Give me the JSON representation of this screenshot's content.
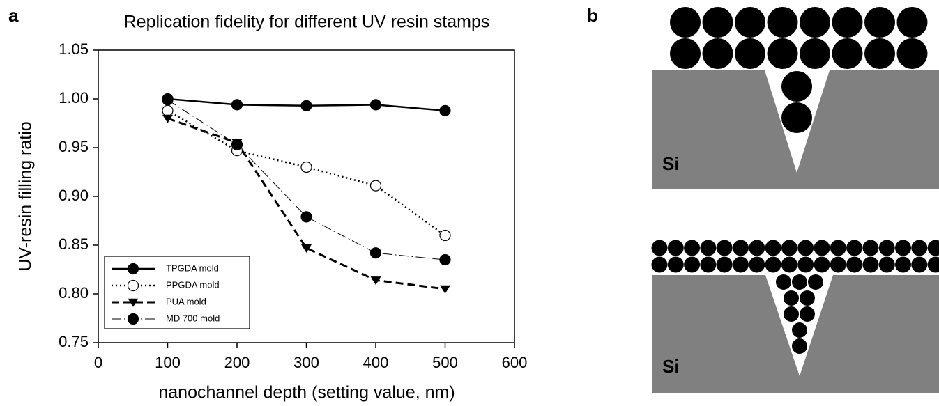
{
  "panel_labels": [
    "a",
    "b"
  ],
  "chart_data": {
    "type": "line",
    "title": "Replication fidelity for different UV resin stamps",
    "x_label": "nanochannel depth (setting value, nm)",
    "y_label": "UV-resin filling ratio",
    "x": [
      100,
      200,
      300,
      400,
      500
    ],
    "series": [
      {
        "name": "TPGDA mold",
        "color": "#000000",
        "marker": "circle",
        "line_style": "solid",
        "values": [
          1.0,
          0.994,
          0.993,
          0.994,
          0.988
        ]
      },
      {
        "name": "PPGDA mold",
        "color": "#000000",
        "marker": "open-circle",
        "line_style": "dotted",
        "values": [
          0.988,
          0.947,
          0.93,
          0.911,
          0.86
        ]
      },
      {
        "name": "PUA mold",
        "color": "#000000",
        "marker": "triangle-down",
        "line_style": "dashed",
        "values": [
          0.98,
          0.955,
          0.847,
          0.814,
          0.805
        ]
      },
      {
        "name": "MD 700 mold",
        "color": "#000000",
        "marker": "circle",
        "line_style": "dash-dot",
        "values": [
          0.999,
          0.953,
          0.879,
          0.842,
          0.835
        ]
      }
    ],
    "xlim": [
      0,
      600
    ],
    "xticks": [
      0,
      100,
      200,
      300,
      400,
      500,
      600
    ],
    "ylim": [
      0.75,
      1.05
    ],
    "yticks": [
      0.75,
      {
        "value": 0.8,
        "label": "0.80"
      },
      0.85,
      {
        "value": 0.9,
        "label": "0.90"
      },
      0.95,
      {
        "value": 1,
        "label": "1.00"
      },
      1.05
    ],
    "legend_position": "lower left"
  },
  "diagram": {
    "labels": [
      "Si",
      "Si"
    ]
  }
}
